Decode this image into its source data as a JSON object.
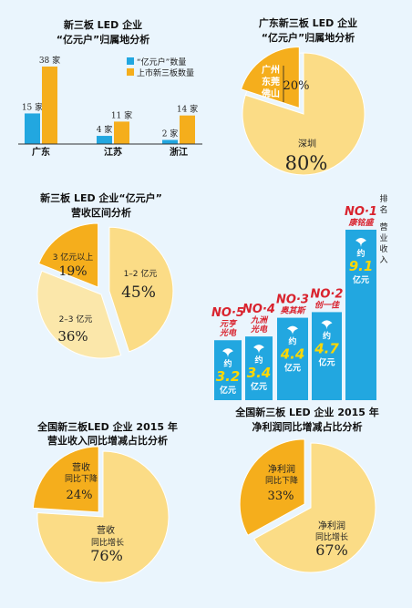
{
  "colors": {
    "background": "#eaf5fd",
    "blue": "#22a7e0",
    "orange": "#f5ae1c",
    "light_yellow": "#fbdc86",
    "pale_yellow": "#fbe7aa",
    "rank_red": "#d9232e",
    "figure_yellow": "#ffd800",
    "green_text": "#1a8f2a"
  },
  "chart_data": [
    {
      "type": "bar",
      "title": [
        "新三板 LED 企业",
        "“亿元户”归属地分析"
      ],
      "categories": [
        "广东",
        "江苏",
        "浙江"
      ],
      "unit": "家",
      "series": [
        {
          "name": "“亿元户”数量",
          "color": "#22a7e0",
          "values": [
            15,
            4,
            2
          ]
        },
        {
          "name": "上市新三板数量",
          "color": "#f5ae1c",
          "values": [
            38,
            11,
            14
          ]
        }
      ],
      "ylim": [
        0,
        38
      ],
      "legend": "top-right"
    },
    {
      "type": "pie",
      "title": [
        "广东新三板 LED 企业",
        "“亿元户”归属地分析"
      ],
      "slices": [
        {
          "label": [
            "深圳"
          ],
          "value": 80,
          "display": "80%",
          "color": "#fbdc86"
        },
        {
          "label": [
            "广州",
            "东莞",
            "佛山"
          ],
          "value": 20,
          "display": "20%",
          "color": "#f5ae1c"
        }
      ]
    },
    {
      "type": "pie",
      "title": [
        "新三板 LED 企业“亿元户”",
        "营收区间分析"
      ],
      "slices": [
        {
          "label": [
            "1–2 亿元"
          ],
          "value": 45,
          "display": "45%",
          "color": "#fbdc86"
        },
        {
          "label": [
            "2–3 亿元"
          ],
          "value": 36,
          "display": "36%",
          "color": "#fbe7aa"
        },
        {
          "label": [
            "3 亿元以上"
          ],
          "value": 19,
          "display": "19%",
          "color": "#f5ae1c"
        }
      ]
    },
    {
      "type": "bar",
      "title_side": [
        "排名",
        "营业收入"
      ],
      "unit_label": [
        "约",
        "亿元"
      ],
      "categories": [
        {
          "rank": "NO·5",
          "name": [
            "元亨",
            "光电"
          ]
        },
        {
          "rank": "NO·4",
          "name": [
            "九洲",
            "光电"
          ]
        },
        {
          "rank": "NO·3",
          "name": [
            "奥其斯"
          ]
        },
        {
          "rank": "NO·2",
          "name": [
            "创一佳"
          ]
        },
        {
          "rank": "NO·1",
          "name": [
            "康铭盛"
          ]
        }
      ],
      "values": [
        3.2,
        3.4,
        4.4,
        4.7,
        9.1
      ]
    },
    {
      "type": "pie",
      "title": [
        "全国新三板LED 企业 2015 年",
        "营业收入同比增减占比分析"
      ],
      "slices": [
        {
          "label": [
            "营收"
          ],
          "sublabel": "同比增长",
          "sublabel_color": "#d9232e",
          "value": 76,
          "display": "76%",
          "color": "#fbdc86"
        },
        {
          "label": [
            "营收"
          ],
          "sublabel": "同比下降",
          "sublabel_color": "#1a8f2a",
          "value": 24,
          "display": "24%",
          "color": "#f5ae1c"
        }
      ]
    },
    {
      "type": "pie",
      "title": [
        "全国新三板 LED 企业 2015 年",
        "净利润同比增减占比分析"
      ],
      "slices": [
        {
          "label": [
            "净利润"
          ],
          "sublabel": "同比增长",
          "sublabel_color": "#d9232e",
          "value": 67,
          "display": "67%",
          "color": "#fbdc86"
        },
        {
          "label": [
            "净利润"
          ],
          "sublabel": "同比下降",
          "sublabel_color": "#1a8f2a",
          "value": 33,
          "display": "33%",
          "color": "#f5ae1c"
        }
      ]
    }
  ]
}
